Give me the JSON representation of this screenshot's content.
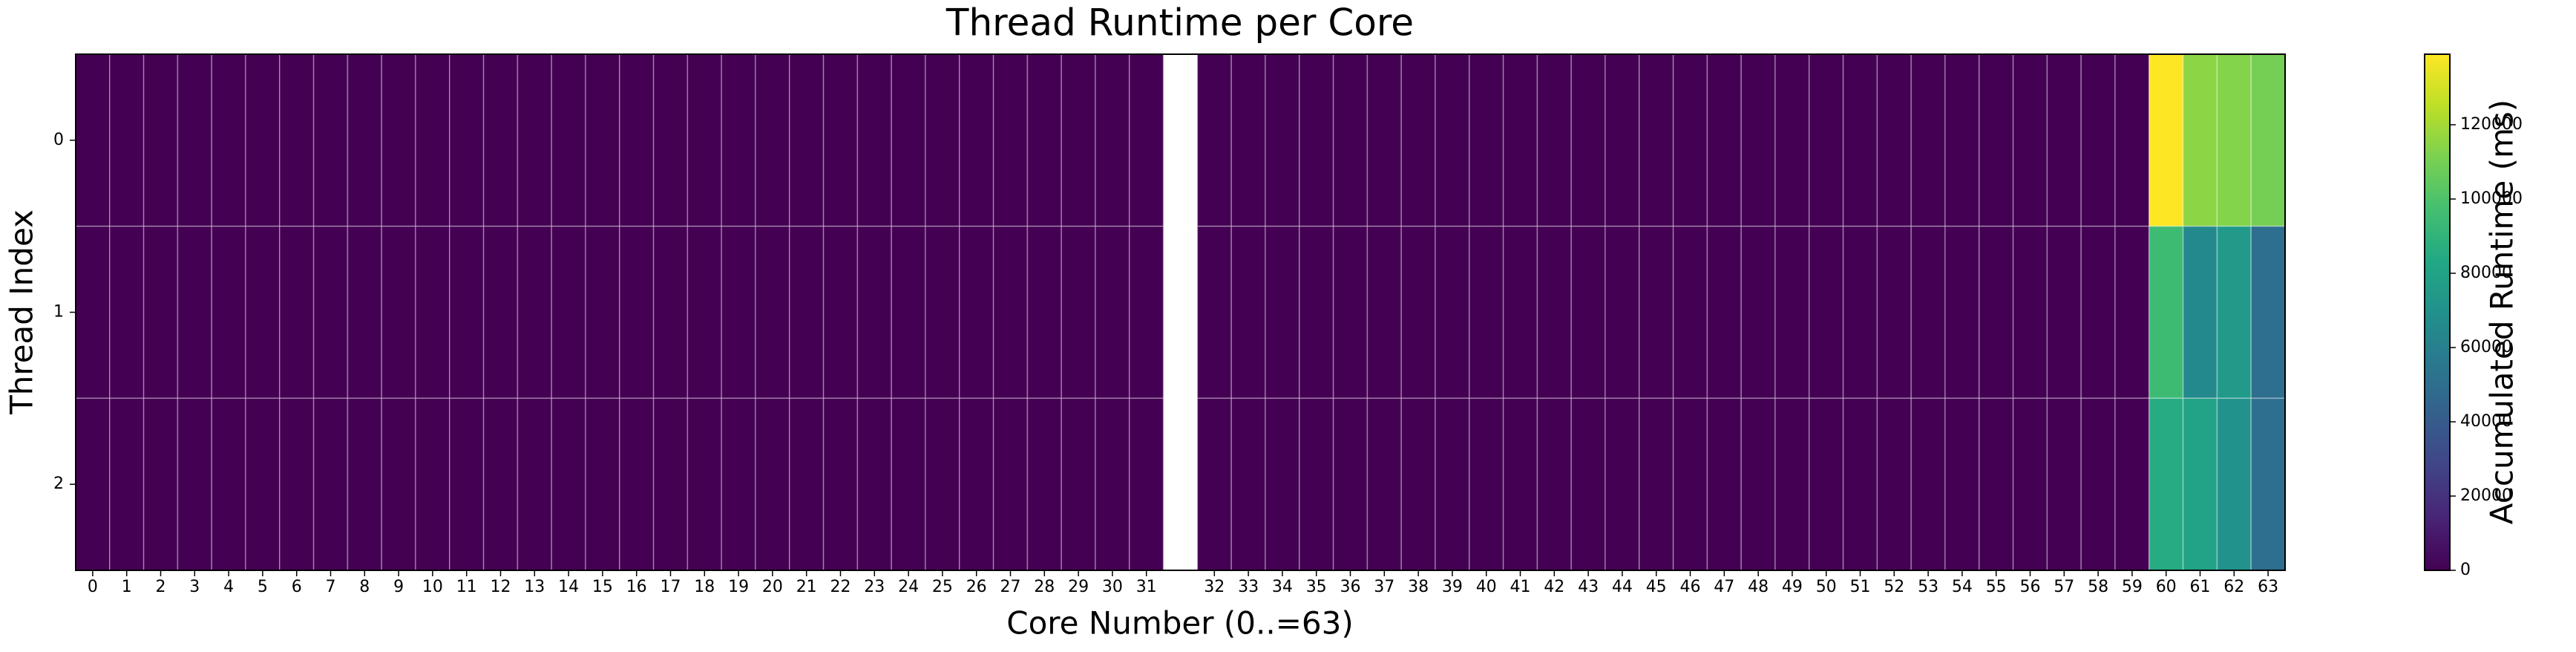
{
  "chart_data": {
    "type": "heatmap",
    "title": "Thread Runtime per Core",
    "xlabel": "Core Number (0..=63)",
    "ylabel": "Thread Index",
    "colorbar_label": "Accumulated Runtime (ms)",
    "colormap": "viridis",
    "categories": [
      "0",
      "1",
      "2",
      "3",
      "4",
      "5",
      "6",
      "7",
      "8",
      "9",
      "10",
      "11",
      "12",
      "13",
      "14",
      "15",
      "16",
      "17",
      "18",
      "19",
      "20",
      "21",
      "22",
      "23",
      "24",
      "25",
      "26",
      "27",
      "28",
      "29",
      "30",
      "31",
      null,
      "32",
      "33",
      "34",
      "35",
      "36",
      "37",
      "38",
      "39",
      "40",
      "41",
      "42",
      "43",
      "44",
      "45",
      "46",
      "47",
      "48",
      "49",
      "50",
      "51",
      "52",
      "53",
      "54",
      "55",
      "56",
      "57",
      "58",
      "59",
      "60",
      "61",
      "62",
      "63"
    ],
    "rows": [
      "0",
      "1",
      "2"
    ],
    "values": [
      [
        0,
        0,
        0,
        0,
        0,
        0,
        0,
        0,
        0,
        0,
        0,
        0,
        0,
        0,
        0,
        0,
        0,
        0,
        0,
        0,
        0,
        0,
        0,
        0,
        0,
        0,
        0,
        0,
        0,
        0,
        0,
        0,
        null,
        0,
        0,
        0,
        0,
        0,
        0,
        0,
        0,
        0,
        0,
        0,
        0,
        0,
        0,
        0,
        0,
        0,
        0,
        0,
        0,
        0,
        0,
        0,
        0,
        0,
        0,
        0,
        0,
        139000,
        115000,
        113000,
        110000
      ],
      [
        0,
        0,
        0,
        0,
        0,
        0,
        0,
        0,
        0,
        0,
        0,
        0,
        0,
        0,
        0,
        0,
        0,
        0,
        0,
        0,
        0,
        0,
        0,
        0,
        0,
        0,
        0,
        0,
        0,
        0,
        0,
        0,
        null,
        0,
        0,
        0,
        0,
        0,
        0,
        0,
        0,
        0,
        0,
        0,
        0,
        0,
        0,
        0,
        0,
        0,
        0,
        0,
        0,
        0,
        0,
        0,
        0,
        0,
        0,
        0,
        0,
        95000,
        65000,
        75000,
        50000
      ],
      [
        0,
        0,
        0,
        0,
        0,
        0,
        0,
        0,
        0,
        0,
        0,
        0,
        0,
        0,
        0,
        0,
        0,
        0,
        0,
        0,
        0,
        0,
        0,
        0,
        0,
        0,
        0,
        0,
        0,
        0,
        0,
        0,
        null,
        0,
        0,
        0,
        0,
        0,
        0,
        0,
        0,
        0,
        0,
        0,
        0,
        0,
        0,
        0,
        0,
        0,
        0,
        0,
        0,
        0,
        0,
        0,
        0,
        0,
        0,
        0,
        0,
        85000,
        80000,
        70000,
        50000
      ]
    ],
    "clim": [
      0,
      139000
    ],
    "cticks": [
      0,
      20000,
      40000,
      60000,
      80000,
      100000,
      120000
    ]
  }
}
